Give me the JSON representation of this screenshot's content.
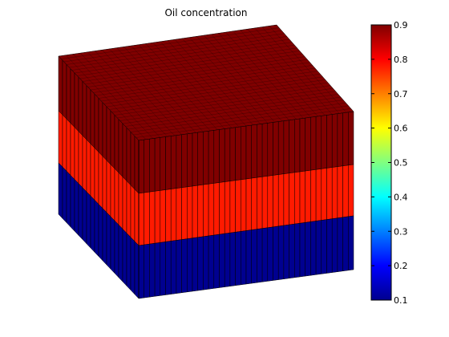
{
  "chart_data": {
    "type": "heatmap",
    "title": "Oil concentration",
    "subtype": "3d-layered-block",
    "colormap": "jet",
    "layers": [
      {
        "position": "top",
        "value": 0.9,
        "color": "#800000"
      },
      {
        "position": "middle",
        "value": 0.8,
        "color": "#ff1a00"
      },
      {
        "position": "bottom",
        "value": 0.1,
        "color": "#000090"
      }
    ],
    "colorbar": {
      "range": [
        0.1,
        0.9
      ],
      "ticks": [
        "0.1",
        "0.2",
        "0.3",
        "0.4",
        "0.5",
        "0.6",
        "0.7",
        "0.8",
        "0.9"
      ]
    }
  }
}
